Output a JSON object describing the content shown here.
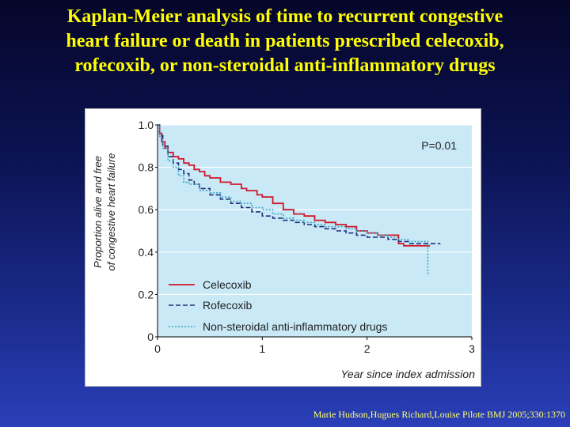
{
  "slide": {
    "title_lines": [
      "Kaplan-Meier analysis of time to recurrent congestive",
      "heart failure or death in patients prescribed celecoxib,",
      "rofecoxib, or non-steroidal anti-inflammatory drugs"
    ],
    "citation": "Marie Hudson,Hugues Richard,Louise Pilote BMJ 2005;330:1370"
  },
  "colors": {
    "background_top": "#06062a",
    "background_bottom": "#2a3fb8",
    "title": "#ffff00",
    "plot_background": "#c9e9f7",
    "celecoxib": "#d0182a",
    "rofecoxib": "#1d2f7a",
    "nsaid": "#3aa6c4"
  },
  "chart_data": {
    "type": "line",
    "title": "",
    "xlabel": "Year since index admission",
    "ylabel_lines": [
      "Proportion alive and free",
      "of congestive heart failure"
    ],
    "xlim": [
      0,
      3
    ],
    "ylim": [
      0,
      1
    ],
    "x_ticks": [
      0,
      1,
      2,
      3
    ],
    "x_tick_labels": [
      "0",
      "1",
      "2",
      "3"
    ],
    "y_ticks": [
      0,
      0.2,
      0.4,
      0.6,
      0.8,
      1.0
    ],
    "y_tick_labels": [
      "0",
      "0.2",
      "0.4",
      "0.6",
      "0.8",
      "1.0"
    ],
    "grid": "horizontal",
    "annotation": "P=0.01",
    "legend_position": "bottom-left",
    "series": [
      {
        "name": "Celecoxib",
        "style": "solid",
        "color_key": "celecoxib",
        "x": [
          0,
          0.02,
          0.04,
          0.07,
          0.1,
          0.15,
          0.2,
          0.25,
          0.3,
          0.35,
          0.4,
          0.45,
          0.5,
          0.6,
          0.7,
          0.8,
          0.85,
          0.95,
          1.0,
          1.1,
          1.2,
          1.3,
          1.4,
          1.5,
          1.6,
          1.7,
          1.8,
          1.9,
          2.0,
          2.1,
          2.2,
          2.3,
          2.35,
          2.6
        ],
        "y": [
          1.0,
          0.96,
          0.92,
          0.89,
          0.87,
          0.85,
          0.84,
          0.82,
          0.81,
          0.79,
          0.78,
          0.76,
          0.75,
          0.73,
          0.72,
          0.7,
          0.69,
          0.67,
          0.66,
          0.63,
          0.6,
          0.58,
          0.57,
          0.55,
          0.54,
          0.53,
          0.52,
          0.5,
          0.49,
          0.48,
          0.48,
          0.44,
          0.43,
          0.43
        ]
      },
      {
        "name": "Rofecoxib",
        "style": "dashed",
        "color_key": "rofecoxib",
        "x": [
          0,
          0.02,
          0.05,
          0.1,
          0.15,
          0.2,
          0.25,
          0.3,
          0.35,
          0.4,
          0.5,
          0.6,
          0.7,
          0.8,
          0.9,
          1.0,
          1.1,
          1.2,
          1.3,
          1.4,
          1.5,
          1.6,
          1.7,
          1.8,
          1.9,
          2.0,
          2.1,
          2.2,
          2.3,
          2.4,
          2.5,
          2.6,
          2.7
        ],
        "y": [
          1.0,
          0.95,
          0.9,
          0.85,
          0.82,
          0.79,
          0.77,
          0.74,
          0.72,
          0.7,
          0.67,
          0.65,
          0.63,
          0.61,
          0.59,
          0.57,
          0.56,
          0.55,
          0.54,
          0.53,
          0.52,
          0.51,
          0.5,
          0.49,
          0.48,
          0.47,
          0.47,
          0.46,
          0.45,
          0.44,
          0.44,
          0.44,
          0.44
        ]
      },
      {
        "name": "Non-steroidal anti-inflammatory drugs",
        "style": "dotted",
        "color_key": "nsaid",
        "x": [
          0,
          0.02,
          0.05,
          0.1,
          0.15,
          0.2,
          0.25,
          0.3,
          0.4,
          0.5,
          0.6,
          0.7,
          0.8,
          0.9,
          1.0,
          1.1,
          1.2,
          1.3,
          1.4,
          1.5,
          1.6,
          1.7,
          1.8,
          1.9,
          2.0,
          2.1,
          2.2,
          2.3,
          2.4,
          2.5,
          2.55,
          2.58,
          2.6
        ],
        "y": [
          1.0,
          0.94,
          0.89,
          0.83,
          0.8,
          0.76,
          0.73,
          0.72,
          0.69,
          0.68,
          0.66,
          0.64,
          0.63,
          0.61,
          0.6,
          0.58,
          0.56,
          0.55,
          0.54,
          0.53,
          0.52,
          0.52,
          0.51,
          0.5,
          0.49,
          0.48,
          0.47,
          0.46,
          0.45,
          0.45,
          0.45,
          0.3,
          0.3
        ]
      }
    ]
  }
}
